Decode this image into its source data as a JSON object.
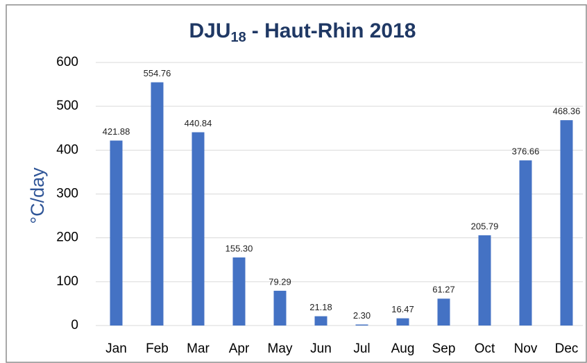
{
  "chart_data": {
    "type": "bar",
    "title": {
      "text": "DJU",
      "subscript": "18",
      "rest": "- Haut-Rhin 2018"
    },
    "y_label": "°C/day",
    "categories": [
      "Jan",
      "Feb",
      "Mar",
      "Apr",
      "May",
      "Jun",
      "Jul",
      "Aug",
      "Sep",
      "Oct",
      "Nov",
      "Dec"
    ],
    "values": [
      421.88,
      554.76,
      440.84,
      155.3,
      79.29,
      21.18,
      2.3,
      16.47,
      61.27,
      205.79,
      376.66,
      468.36
    ],
    "value_labels": [
      "421.88",
      "554.76",
      "440.84",
      "155.30",
      "79.29",
      "21.18",
      "2.30",
      "16.47",
      "61.27",
      "205.79",
      "376.66",
      "468.36"
    ],
    "color": "#4472c4",
    "ylim": [
      0,
      600
    ],
    "yticks": [
      0,
      100,
      200,
      300,
      400,
      500,
      600
    ],
    "grid": true
  }
}
